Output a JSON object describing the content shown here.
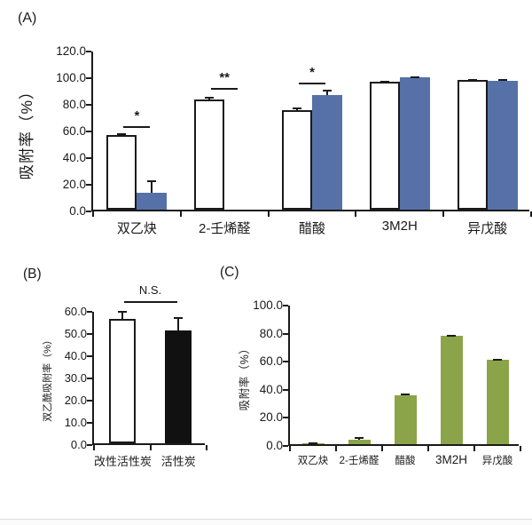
{
  "panels": {
    "a": "(A)",
    "b": "(B)",
    "c": "(C)"
  },
  "colors": {
    "axis": "#1a1a1a",
    "text": "#1a1a1a",
    "blue_bar": "#5571a7",
    "green_bar": "#8ba449",
    "black_bar": "#111111",
    "white_bar": "#ffffff",
    "background": "#ffffff"
  },
  "chart_data": [
    {
      "id": "A",
      "type": "bar",
      "ylabel": "吸附率（%）",
      "ylim": [
        0,
        120
      ],
      "ytick_values": [
        120,
        100,
        80,
        60,
        40,
        20,
        0
      ],
      "ytick_labels": [
        "120.0",
        "100.0",
        "80.0",
        "60.0",
        "40.0",
        "20.0",
        "0.0"
      ],
      "categories": [
        "双乙炔",
        "2-壬烯醛",
        "醋酸",
        "3M2H",
        "异戊酸"
      ],
      "series": [
        {
          "name": "white_bars",
          "color": "#ffffff",
          "values": [
            56,
            83,
            75,
            96,
            97.5
          ],
          "errors": [
            1.2,
            2,
            1.5,
            0.8,
            0.8
          ]
        },
        {
          "name": "blue_bars",
          "color": "#5571a7",
          "values": [
            12.5,
            0,
            86,
            99.5,
            97
          ],
          "errors": [
            9.5,
            0,
            4,
            0.5,
            0.8
          ]
        }
      ],
      "significance": [
        {
          "category_index": 0,
          "label": "*",
          "y": 64
        },
        {
          "category_index": 1,
          "label": "**",
          "y": 93
        },
        {
          "category_index": 2,
          "label": "*",
          "y": 97
        }
      ],
      "grid": false,
      "legend": "none"
    },
    {
      "id": "B",
      "type": "bar",
      "ylabel": "双乙酰吸附率（%）",
      "ylim": [
        0,
        60
      ],
      "ytick_values": [
        60,
        50,
        40,
        30,
        20,
        10,
        0
      ],
      "ytick_labels": [
        "60.0",
        "50.0",
        "40.0",
        "30.0",
        "20.0",
        "10.0",
        "0.0"
      ],
      "categories": [
        "改性活性炭",
        "活性炭"
      ],
      "values": [
        56,
        51
      ],
      "errors": [
        3.5,
        6
      ],
      "bar_colors": [
        "#ffffff",
        "#111111"
      ],
      "significance": [
        {
          "span": [
            0,
            1
          ],
          "label": "N.S.",
          "y": 65
        }
      ],
      "grid": false,
      "legend": "none"
    },
    {
      "id": "C",
      "type": "bar",
      "ylabel": "吸附率（%）",
      "ylim": [
        0,
        100
      ],
      "ytick_values": [
        100,
        80,
        60,
        40,
        20,
        0
      ],
      "ytick_labels": [
        "100.0",
        "80.0",
        "60.0",
        "40.0",
        "20.0",
        "0.0"
      ],
      "categories": [
        "双乙炔",
        "2-壬烯醛",
        "醋酸",
        "3M2H",
        "异戊酸"
      ],
      "values": [
        0.8,
        3.2,
        35,
        77,
        60
      ],
      "errors": [
        0.4,
        2,
        1.2,
        0.6,
        0.5
      ],
      "bar_color": "#8ba449",
      "significance": [],
      "grid": false,
      "legend": "none"
    }
  ]
}
